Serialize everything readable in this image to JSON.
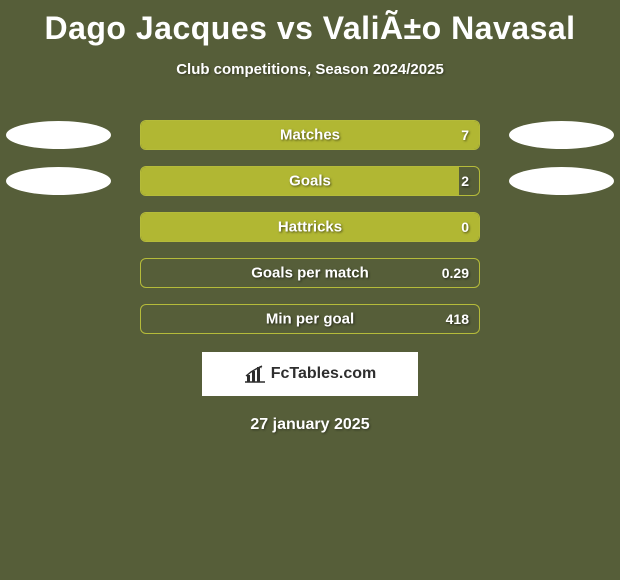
{
  "background_color": "#565e39",
  "title": "Dago Jacques vs ValiÃ±o Navasal",
  "title_color": "#ffffff",
  "title_fontsize": 32,
  "subtitle": "Club competitions, Season 2024/2025",
  "subtitle_color": "#ffffff",
  "subtitle_fontsize": 15,
  "chart": {
    "track_width": 340,
    "track_border_color": "#b5bb3a",
    "fill_color": "#b1b733",
    "label_color": "#ffffff",
    "value_color": "#ffffff",
    "text_shadow": "1px 1px 2px rgba(0,0,0,0.55)",
    "left_ellipse_color": "#ffffff",
    "right_ellipse_color": "#ffffff",
    "rows": [
      {
        "label": "Matches",
        "value": "7",
        "fill_pct": 100,
        "left_ellipse": true,
        "right_ellipse": true
      },
      {
        "label": "Goals",
        "value": "2",
        "fill_pct": 94,
        "left_ellipse": true,
        "right_ellipse": true
      },
      {
        "label": "Hattricks",
        "value": "0",
        "fill_pct": 100,
        "left_ellipse": false,
        "right_ellipse": false
      },
      {
        "label": "Goals per match",
        "value": "0.29",
        "fill_pct": 0,
        "left_ellipse": false,
        "right_ellipse": false
      },
      {
        "label": "Min per goal",
        "value": "418",
        "fill_pct": 0,
        "left_ellipse": false,
        "right_ellipse": false
      }
    ]
  },
  "brand": {
    "text": "FcTables.com",
    "text_color": "#2e2e2e",
    "background_color": "#ffffff",
    "icon_color": "#2e2e2e"
  },
  "date": "27 january 2025",
  "date_color": "#ffffff",
  "date_fontsize": 16
}
